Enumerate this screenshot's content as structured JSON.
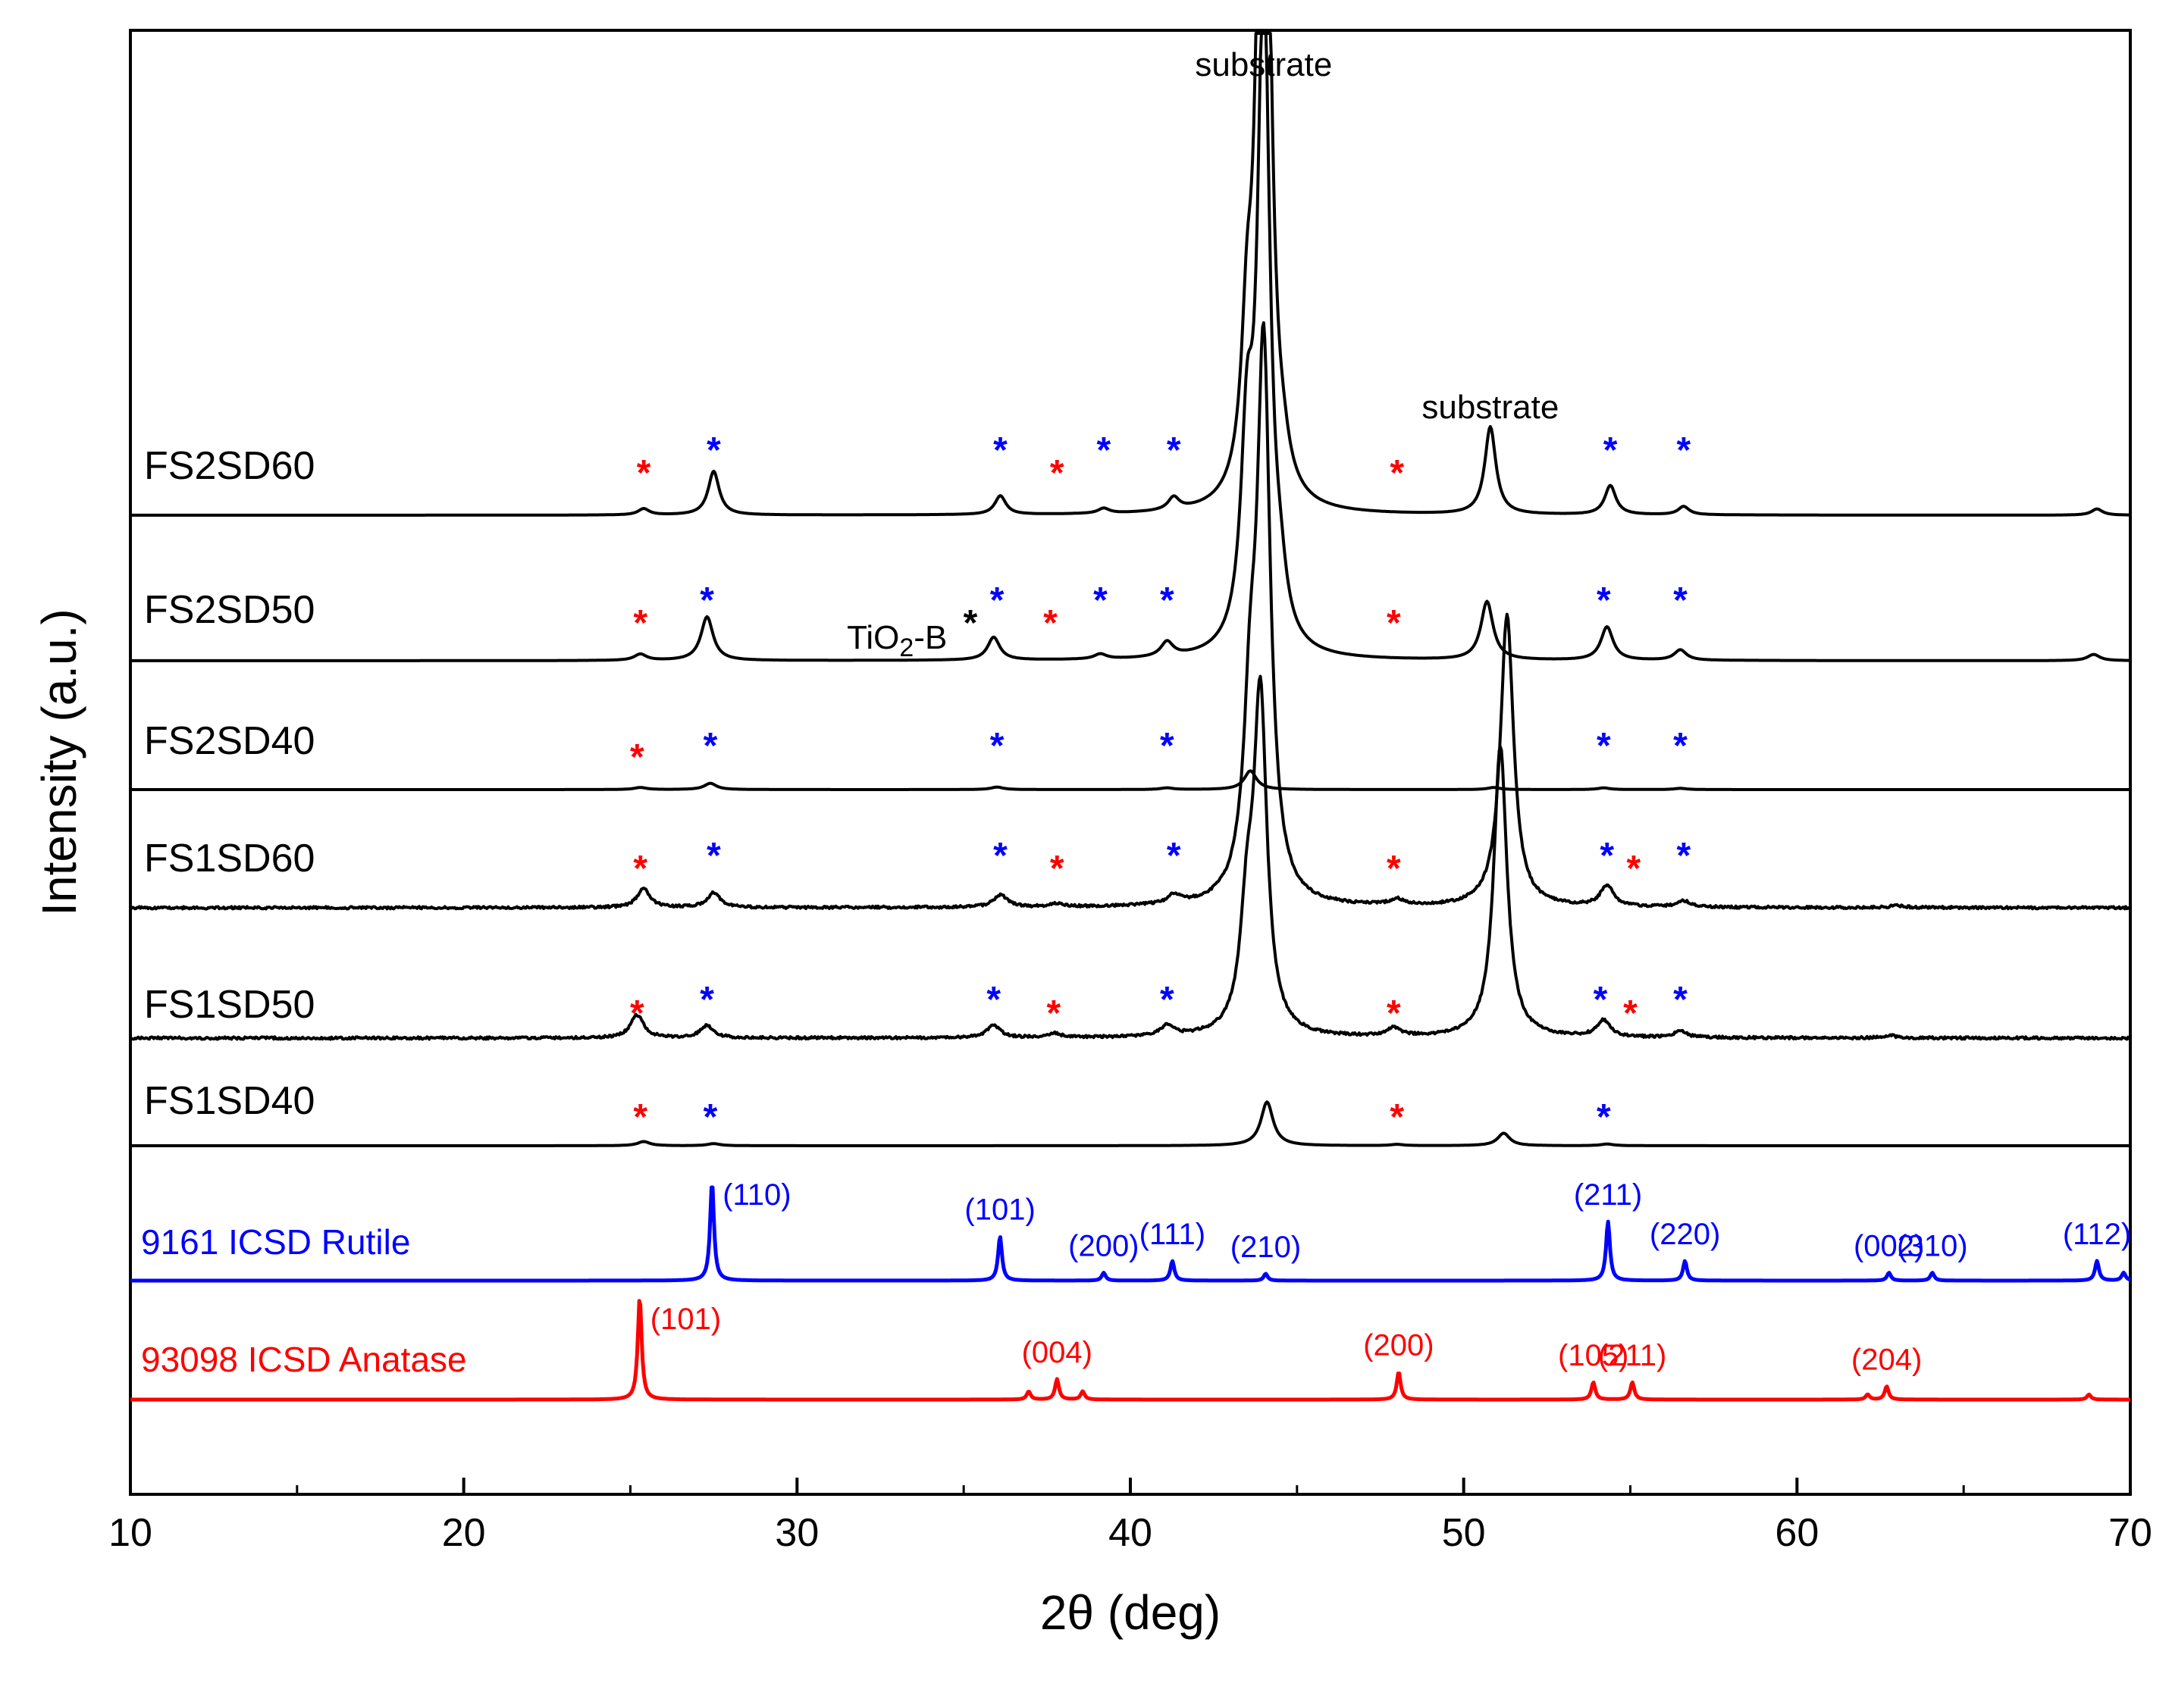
{
  "chart_data": {
    "type": "line",
    "title": "",
    "xlabel": "2θ (deg)",
    "ylabel": "Intensity (a.u.)",
    "xlim": [
      10,
      70
    ],
    "x_ticks": [
      10,
      20,
      30,
      40,
      50,
      60,
      70
    ],
    "x_tick_labels": [
      "10",
      "20",
      "30",
      "40",
      "50",
      "60",
      "70"
    ],
    "y_ticks": "none",
    "grid": false,
    "legend": "inline labels at left of each trace",
    "colors": {
      "sample": "#000000",
      "rutile": "#0000ff",
      "anatase": "#ff0000",
      "tio2b_marker": "#000000"
    },
    "marker_symbol": "*",
    "series": [
      {
        "name": "FS2SD60",
        "color": "#000000",
        "baseline": 0.0,
        "peaks": [
          [
            25.4,
            0.15
          ],
          [
            27.5,
            1.05
          ],
          [
            36.1,
            0.45
          ],
          [
            39.2,
            0.12
          ],
          [
            41.3,
            0.3
          ],
          [
            43.5,
            3.2
          ],
          [
            44.0,
            25.0
          ],
          [
            44.6,
            0.4
          ],
          [
            50.8,
            2.1
          ],
          [
            54.4,
            0.7
          ],
          [
            56.6,
            0.2
          ],
          [
            69.0,
            0.15
          ]
        ],
        "markers": [
          {
            "x": 25.4,
            "phase": "anatase"
          },
          {
            "x": 27.5,
            "phase": "rutile"
          },
          {
            "x": 36.1,
            "phase": "rutile"
          },
          {
            "x": 37.8,
            "phase": "anatase"
          },
          {
            "x": 39.2,
            "phase": "rutile"
          },
          {
            "x": 41.3,
            "phase": "rutile"
          },
          {
            "x": 48.0,
            "phase": "anatase"
          },
          {
            "x": 54.4,
            "phase": "rutile"
          },
          {
            "x": 56.6,
            "phase": "rutile"
          }
        ]
      },
      {
        "name": "FS2SD50",
        "color": "#000000",
        "baseline": 0.0,
        "peaks": [
          [
            25.3,
            0.15
          ],
          [
            27.3,
            1.05
          ],
          [
            35.9,
            0.55
          ],
          [
            39.1,
            0.12
          ],
          [
            41.1,
            0.35
          ],
          [
            43.5,
            4.5
          ],
          [
            44.0,
            16.0
          ],
          [
            44.5,
            0.9
          ],
          [
            50.7,
            1.4
          ],
          [
            54.3,
            0.8
          ],
          [
            56.5,
            0.25
          ],
          [
            68.9,
            0.15
          ]
        ],
        "markers": [
          {
            "x": 25.3,
            "phase": "anatase"
          },
          {
            "x": 27.3,
            "phase": "rutile"
          },
          {
            "x": 35.2,
            "phase": "tio2b"
          },
          {
            "x": 36.0,
            "phase": "rutile"
          },
          {
            "x": 37.6,
            "phase": "anatase"
          },
          {
            "x": 39.1,
            "phase": "rutile"
          },
          {
            "x": 41.1,
            "phase": "rutile"
          },
          {
            "x": 47.9,
            "phase": "anatase"
          },
          {
            "x": 54.2,
            "phase": "rutile"
          },
          {
            "x": 56.5,
            "phase": "rutile"
          }
        ]
      },
      {
        "name": "FS2SD40",
        "color": "#000000",
        "baseline": 0.0,
        "peaks": [
          [
            25.3,
            0.05
          ],
          [
            27.4,
            0.15
          ],
          [
            36.0,
            0.06
          ],
          [
            41.1,
            0.04
          ],
          [
            43.6,
            0.45
          ],
          [
            50.9,
            0.05
          ],
          [
            54.2,
            0.04
          ],
          [
            56.5,
            0.03
          ]
        ],
        "markers": [
          {
            "x": 25.2,
            "phase": "anatase"
          },
          {
            "x": 27.4,
            "phase": "rutile"
          },
          {
            "x": 36.0,
            "phase": "rutile"
          },
          {
            "x": 41.1,
            "phase": "rutile"
          },
          {
            "x": 54.2,
            "phase": "rutile"
          },
          {
            "x": 56.5,
            "phase": "rutile"
          }
        ]
      },
      {
        "name": "FS1SD60",
        "color": "#000000",
        "baseline": 0.0,
        "peaks": [
          [
            25.4,
            0.45
          ],
          [
            27.5,
            0.35
          ],
          [
            36.1,
            0.3
          ],
          [
            37.8,
            0.08
          ],
          [
            41.3,
            0.2
          ],
          [
            43.6,
            3.8
          ],
          [
            44.0,
            13.0
          ],
          [
            48.0,
            0.15
          ],
          [
            51.3,
            7.0
          ],
          [
            54.3,
            0.5
          ],
          [
            56.6,
            0.15
          ],
          [
            63.0,
            0.05
          ]
        ],
        "markers": [
          {
            "x": 25.3,
            "phase": "anatase"
          },
          {
            "x": 27.5,
            "phase": "rutile"
          },
          {
            "x": 36.1,
            "phase": "rutile"
          },
          {
            "x": 37.8,
            "phase": "anatase"
          },
          {
            "x": 41.3,
            "phase": "rutile"
          },
          {
            "x": 47.9,
            "phase": "anatase"
          },
          {
            "x": 54.3,
            "phase": "rutile"
          },
          {
            "x": 55.1,
            "phase": "anatase"
          },
          {
            "x": 56.6,
            "phase": "rutile"
          }
        ]
      },
      {
        "name": "FS1SD50",
        "color": "#000000",
        "baseline": 0.0,
        "peaks": [
          [
            25.2,
            0.55
          ],
          [
            27.3,
            0.3
          ],
          [
            35.9,
            0.3
          ],
          [
            37.7,
            0.1
          ],
          [
            41.1,
            0.25
          ],
          [
            43.5,
            2.5
          ],
          [
            43.9,
            8.0
          ],
          [
            47.9,
            0.2
          ],
          [
            51.1,
            7.0
          ],
          [
            54.2,
            0.4
          ],
          [
            56.5,
            0.15
          ],
          [
            62.8,
            0.06
          ]
        ],
        "markers": [
          {
            "x": 25.2,
            "phase": "anatase"
          },
          {
            "x": 27.3,
            "phase": "rutile"
          },
          {
            "x": 35.9,
            "phase": "rutile"
          },
          {
            "x": 37.7,
            "phase": "anatase"
          },
          {
            "x": 41.1,
            "phase": "rutile"
          },
          {
            "x": 47.9,
            "phase": "anatase"
          },
          {
            "x": 54.1,
            "phase": "rutile"
          },
          {
            "x": 55.0,
            "phase": "anatase"
          },
          {
            "x": 56.5,
            "phase": "rutile"
          }
        ]
      },
      {
        "name": "FS1SD40",
        "color": "#000000",
        "baseline": 0.0,
        "peaks": [
          [
            25.4,
            0.1
          ],
          [
            27.5,
            0.05
          ],
          [
            44.1,
            1.05
          ],
          [
            48.0,
            0.03
          ],
          [
            51.2,
            0.3
          ],
          [
            54.3,
            0.04
          ]
        ],
        "markers": [
          {
            "x": 25.3,
            "phase": "anatase"
          },
          {
            "x": 27.4,
            "phase": "rutile"
          },
          {
            "x": 48.0,
            "phase": "anatase"
          },
          {
            "x": 54.2,
            "phase": "rutile"
          }
        ]
      },
      {
        "name": "9161 ICSD Rutile",
        "color": "#0000ff",
        "reference": true,
        "peaks": [
          [
            27.45,
            1.0
          ],
          [
            36.09,
            0.45
          ],
          [
            39.2,
            0.08
          ],
          [
            41.26,
            0.2
          ],
          [
            44.06,
            0.07
          ],
          [
            54.33,
            0.6
          ],
          [
            56.64,
            0.2
          ],
          [
            62.76,
            0.08
          ],
          [
            64.06,
            0.08
          ],
          [
            69.0,
            0.2
          ],
          [
            69.8,
            0.08
          ]
        ],
        "hkl_labels": [
          {
            "x": 27.45,
            "text": "(110)"
          },
          {
            "x": 36.09,
            "text": "(101)"
          },
          {
            "x": 39.2,
            "text": "(200)"
          },
          {
            "x": 41.26,
            "text": "(111)"
          },
          {
            "x": 44.06,
            "text": "(210)"
          },
          {
            "x": 54.33,
            "text": "(211)"
          },
          {
            "x": 56.64,
            "text": "(220)"
          },
          {
            "x": 62.76,
            "text": "(002)"
          },
          {
            "x": 64.06,
            "text": "(310)"
          },
          {
            "x": 69.0,
            "text": "(112)"
          }
        ]
      },
      {
        "name": "93098 ICSD Anatase",
        "color": "#ff0000",
        "reference": true,
        "peaks": [
          [
            25.28,
            1.0
          ],
          [
            36.95,
            0.08
          ],
          [
            37.8,
            0.2
          ],
          [
            38.57,
            0.08
          ],
          [
            48.05,
            0.27
          ],
          [
            53.89,
            0.17
          ],
          [
            55.06,
            0.17
          ],
          [
            62.12,
            0.05
          ],
          [
            62.69,
            0.13
          ],
          [
            68.76,
            0.05
          ]
        ],
        "hkl_labels": [
          {
            "x": 25.28,
            "text": "(101)"
          },
          {
            "x": 37.8,
            "text": "(004)"
          },
          {
            "x": 48.05,
            "text": "(200)"
          },
          {
            "x": 53.89,
            "text": "(105)"
          },
          {
            "x": 55.06,
            "text": "(211)"
          },
          {
            "x": 62.69,
            "text": "(204)"
          }
        ]
      }
    ],
    "annotations": [
      {
        "text": "substrate",
        "x": 44.0
      },
      {
        "text": "substrate",
        "x": 50.8
      },
      {
        "text": "TiO",
        "sub": "2",
        "suffix": "-B",
        "x": 35.2
      }
    ]
  }
}
